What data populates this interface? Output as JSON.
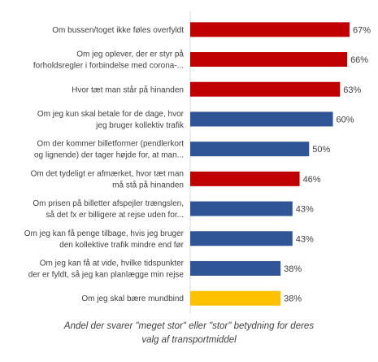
{
  "chart_data": {
    "type": "bar",
    "orientation": "horizontal",
    "categories": [
      [
        "Om bussen/toget ikke føles overfyldt"
      ],
      [
        "Om jeg oplever, der er styr på",
        "forholdsregler i forbindelse med corona-..."
      ],
      [
        "Hvor tæt man står på hinanden"
      ],
      [
        "Om jeg kun skal betale for de dage, hvor",
        "jeg bruger kollektiv trafik"
      ],
      [
        "Om der kommer billetformer (pendlerkort",
        "og lignende) der tager højde for, at man..."
      ],
      [
        "Om det tydeligt er afmærket, hvor tæt man",
        "må stå på hinanden"
      ],
      [
        "Om prisen på billetter afspejler trængslen,",
        "så det fx er billigere at rejse uden for..."
      ],
      [
        "Om jeg kan få penge tilbage, hvis jeg bruger",
        "den kollektive trafik mindre end før"
      ],
      [
        "Om jeg kan få at vide, hvilke tidspunkter",
        "der er fyldt, så jeg kan planlægge min rejse"
      ],
      [
        "Om jeg skal bære mundbind"
      ]
    ],
    "values": [
      67,
      66,
      63,
      60,
      50,
      46,
      43,
      43,
      38,
      38
    ],
    "value_labels": [
      "67%",
      "66%",
      "63%",
      "60%",
      "50%",
      "46%",
      "43%",
      "43%",
      "38%",
      "38%"
    ],
    "bar_colors": [
      "#c00000",
      "#c00000",
      "#c00000",
      "#2f5597",
      "#2f5597",
      "#c00000",
      "#2f5597",
      "#2f5597",
      "#2f5597",
      "#ffc000"
    ],
    "xlim": [
      0,
      67
    ],
    "grid": false,
    "caption": [
      "Andel der svarer \"meget stor\" eller \"stor\" betydning for deres",
      "valg af transportmiddel"
    ]
  }
}
